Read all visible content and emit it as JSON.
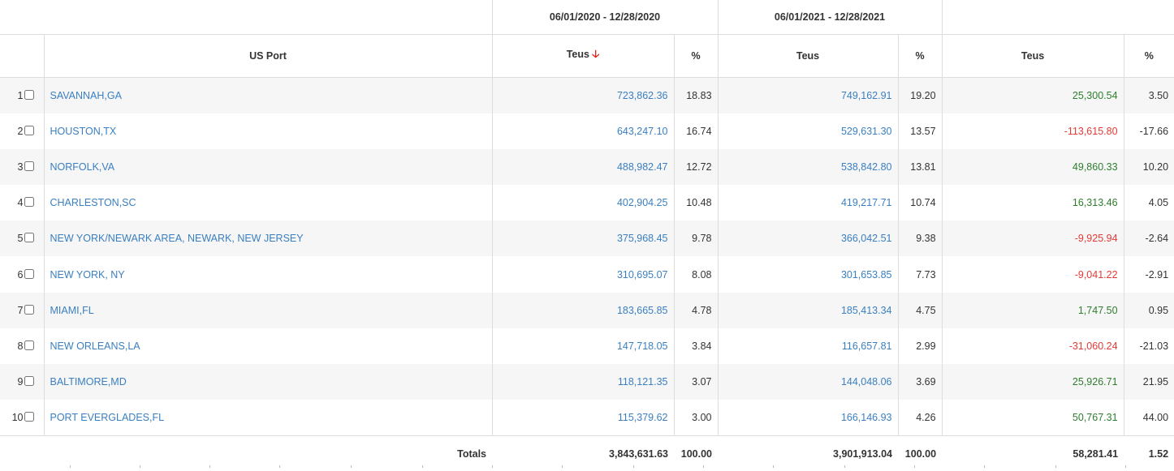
{
  "header": {
    "period_1": "06/01/2020 - 12/28/2020",
    "period_2": "06/01/2021 - 12/28/2021",
    "period_3": "",
    "col_port": "US Port",
    "col_teus": "Teus",
    "col_pct": "%",
    "sort_icon": "arrow-down-icon"
  },
  "rows": [
    {
      "index": "1",
      "port": "SAVANNAH,GA",
      "teus_2020": "723,862.36",
      "pct_2020": "18.83",
      "teus_2021": "749,162.91",
      "pct_2021": "19.20",
      "diff_teus": "25,300.54",
      "diff_pct": "3.50",
      "trend": "pos"
    },
    {
      "index": "2",
      "port": "HOUSTON,TX",
      "teus_2020": "643,247.10",
      "pct_2020": "16.74",
      "teus_2021": "529,631.30",
      "pct_2021": "13.57",
      "diff_teus": "-113,615.80",
      "diff_pct": "-17.66",
      "trend": "neg"
    },
    {
      "index": "3",
      "port": "NORFOLK,VA",
      "teus_2020": "488,982.47",
      "pct_2020": "12.72",
      "teus_2021": "538,842.80",
      "pct_2021": "13.81",
      "diff_teus": "49,860.33",
      "diff_pct": "10.20",
      "trend": "pos"
    },
    {
      "index": "4",
      "port": "CHARLESTON,SC",
      "teus_2020": "402,904.25",
      "pct_2020": "10.48",
      "teus_2021": "419,217.71",
      "pct_2021": "10.74",
      "diff_teus": "16,313.46",
      "diff_pct": "4.05",
      "trend": "pos"
    },
    {
      "index": "5",
      "port": "NEW YORK/NEWARK AREA, NEWARK, NEW JERSEY",
      "teus_2020": "375,968.45",
      "pct_2020": "9.78",
      "teus_2021": "366,042.51",
      "pct_2021": "9.38",
      "diff_teus": "-9,925.94",
      "diff_pct": "-2.64",
      "trend": "neg"
    },
    {
      "index": "6",
      "port": "NEW YORK, NY",
      "teus_2020": "310,695.07",
      "pct_2020": "8.08",
      "teus_2021": "301,653.85",
      "pct_2021": "7.73",
      "diff_teus": "-9,041.22",
      "diff_pct": "-2.91",
      "trend": "neg"
    },
    {
      "index": "7",
      "port": "MIAMI,FL",
      "teus_2020": "183,665.85",
      "pct_2020": "4.78",
      "teus_2021": "185,413.34",
      "pct_2021": "4.75",
      "diff_teus": "1,747.50",
      "diff_pct": "0.95",
      "trend": "pos"
    },
    {
      "index": "8",
      "port": "NEW ORLEANS,LA",
      "teus_2020": "147,718.05",
      "pct_2020": "3.84",
      "teus_2021": "116,657.81",
      "pct_2021": "2.99",
      "diff_teus": "-31,060.24",
      "diff_pct": "-21.03",
      "trend": "neg"
    },
    {
      "index": "9",
      "port": "BALTIMORE,MD",
      "teus_2020": "118,121.35",
      "pct_2020": "3.07",
      "teus_2021": "144,048.06",
      "pct_2021": "3.69",
      "diff_teus": "25,926.71",
      "diff_pct": "21.95",
      "trend": "pos"
    },
    {
      "index": "10",
      "port": "PORT EVERGLADES,FL",
      "teus_2020": "115,379.62",
      "pct_2020": "3.00",
      "teus_2021": "166,146.93",
      "pct_2021": "4.26",
      "diff_teus": "50,767.31",
      "diff_pct": "44.00",
      "trend": "pos"
    }
  ],
  "totals": {
    "label": "Totals",
    "teus_2020": "3,843,631.63",
    "pct_2020": "100.00",
    "teus_2021": "3,901,913.04",
    "pct_2021": "100.00",
    "diff_teus": "58,281.41",
    "diff_pct": "1.52"
  },
  "colors": {
    "link": "#3a7fc1",
    "positive": "#2e7d2e",
    "negative": "#e53935",
    "sort_arrow": "#e2231a"
  }
}
